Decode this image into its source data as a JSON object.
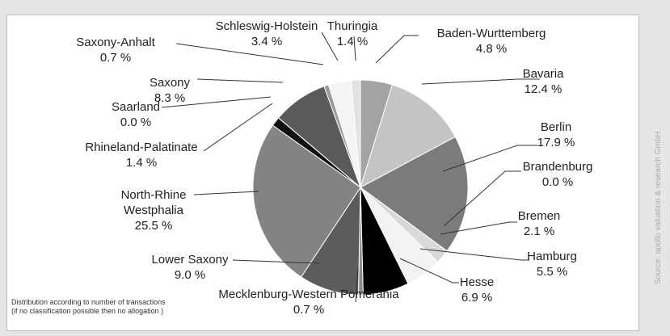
{
  "chart_data": {
    "type": "pie",
    "categories": [
      "Baden-Wurttemberg",
      "Bavaria",
      "Berlin",
      "Brandenburg",
      "Bremen",
      "Hamburg",
      "Hesse",
      "Mecklenburg-Western Pomerania",
      "Lower Saxony",
      "North-Rhine Westphalia",
      "Rhineland-Palatinate",
      "Saarland",
      "Saxony",
      "Saxony-Anhalt",
      "Schleswig-Holstein",
      "Thuringia"
    ],
    "values": [
      4.8,
      12.4,
      17.9,
      0.0,
      2.1,
      5.5,
      6.9,
      0.7,
      9.0,
      25.5,
      1.4,
      0.0,
      8.3,
      0.7,
      3.4,
      1.4
    ],
    "value_labels": [
      "4.8 %",
      "12.4 %",
      "17.9 %",
      "0.0 %",
      "2.1 %",
      "5.5 %",
      "6.9 %",
      "0.7 %",
      "9.0 %",
      "25.5 %",
      "1.4 %",
      "0.0 %",
      "8.3 %",
      "0.7 %",
      "3.4 %",
      "1.4 %"
    ],
    "colors": [
      "#a3a3a3",
      "#c4c4c4",
      "#7b7b7b",
      "#555555",
      "#d9d9d9",
      "#f2f2f2",
      "#000000",
      "#8c8c8c",
      "#5c5c5c",
      "#838383",
      "#111111",
      "#cccccc",
      "#5a5a5a",
      "#9a9a9a",
      "#f4f4f4",
      "#e2e2e2"
    ],
    "note": "Distribution according to number of transactions\n(if no classification possible then no allogation )",
    "source": "Source: apollo valuation & research GmbH"
  }
}
